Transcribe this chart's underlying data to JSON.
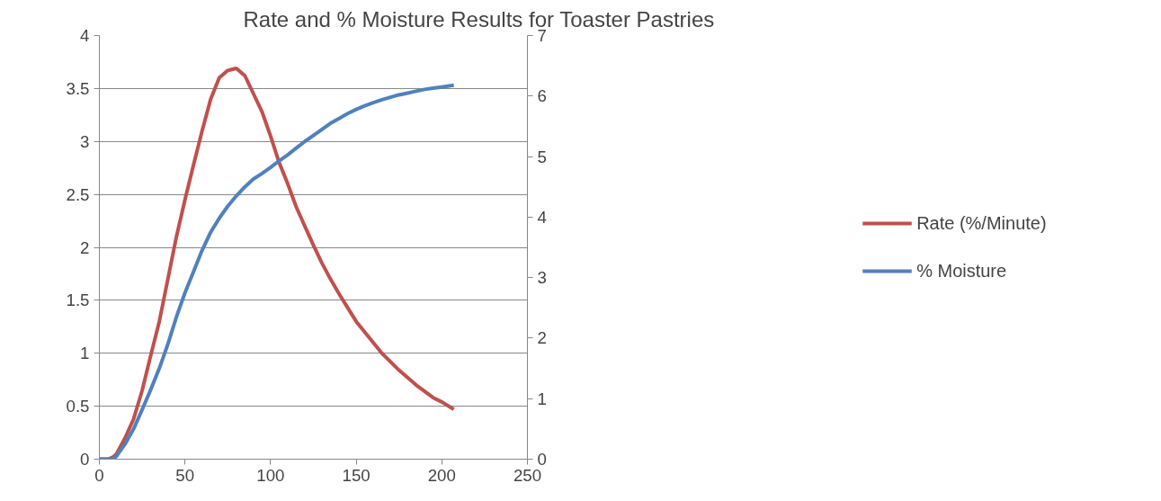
{
  "chart_data": {
    "type": "line",
    "title": "Rate and % Moisture Results for Toaster Pastries",
    "xlim": [
      0,
      250
    ],
    "xticks": [
      0,
      50,
      100,
      150,
      200,
      250
    ],
    "ylim": [
      0,
      4
    ],
    "yticks": [
      0,
      0.5,
      1,
      1.5,
      2,
      2.5,
      3,
      3.5,
      4
    ],
    "y2lim": [
      0,
      7
    ],
    "y2ticks": [
      0,
      1,
      2,
      3,
      4,
      5,
      6,
      7
    ],
    "grid": "y",
    "legend": "right",
    "marker": "none",
    "line_style": "solid",
    "series": [
      {
        "name": "Rate (%/Minute)",
        "color": "#c0504d",
        "x": [
          0,
          5,
          8,
          10,
          15,
          20,
          25,
          30,
          35,
          40,
          45,
          50,
          55,
          60,
          65,
          70,
          75,
          80,
          85,
          90,
          95,
          100,
          105,
          110,
          115,
          120,
          125,
          130,
          135,
          140,
          145,
          150,
          155,
          160,
          165,
          170,
          175,
          180,
          185,
          190,
          195,
          200,
          205,
          207
        ],
        "values": [
          0,
          0,
          0.02,
          0.05,
          0.2,
          0.38,
          0.65,
          0.98,
          1.3,
          1.7,
          2.1,
          2.45,
          2.78,
          3.1,
          3.4,
          3.6,
          3.67,
          3.69,
          3.62,
          3.45,
          3.28,
          3.05,
          2.8,
          2.6,
          2.38,
          2.2,
          2.02,
          1.85,
          1.7,
          1.56,
          1.43,
          1.3,
          1.2,
          1.1,
          1.0,
          0.92,
          0.84,
          0.77,
          0.7,
          0.64,
          0.58,
          0.54,
          0.49,
          0.47
        ]
      },
      {
        "name": "% Moisture",
        "color": "#4f81bd",
        "axis": "y2",
        "x": [
          0,
          8,
          10,
          15,
          20,
          25,
          30,
          35,
          40,
          45,
          50,
          55,
          60,
          65,
          70,
          75,
          80,
          85,
          90,
          95,
          100,
          105,
          110,
          115,
          120,
          125,
          130,
          135,
          140,
          145,
          150,
          155,
          160,
          165,
          170,
          175,
          180,
          185,
          190,
          195,
          200,
          207
        ],
        "values": [
          0,
          0,
          0.05,
          0.25,
          0.5,
          0.82,
          1.15,
          1.5,
          1.9,
          2.35,
          2.75,
          3.1,
          3.45,
          3.75,
          3.98,
          4.18,
          4.35,
          4.5,
          4.63,
          4.72,
          4.82,
          4.93,
          5.03,
          5.14,
          5.25,
          5.35,
          5.45,
          5.55,
          5.63,
          5.71,
          5.78,
          5.84,
          5.89,
          5.94,
          5.98,
          6.02,
          6.05,
          6.08,
          6.11,
          6.13,
          6.15,
          6.18
        ]
      }
    ]
  }
}
